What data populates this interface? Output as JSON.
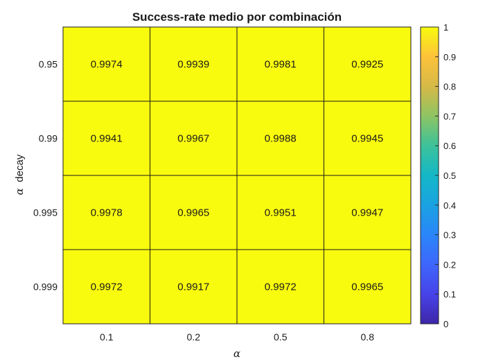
{
  "chart_data": {
    "type": "heatmap",
    "title": "Success-rate medio por combinación",
    "xlabel": "α",
    "ylabel_symbol": "α",
    "ylabel_text": "decay",
    "x_categories": [
      "0.1",
      "0.2",
      "0.5",
      "0.8"
    ],
    "y_categories": [
      "0.95",
      "0.99",
      "0.995",
      "0.999"
    ],
    "values": [
      [
        0.9974,
        0.9939,
        0.9981,
        0.9925
      ],
      [
        0.9941,
        0.9967,
        0.9988,
        0.9945
      ],
      [
        0.9978,
        0.9965,
        0.9951,
        0.9947
      ],
      [
        0.9972,
        0.9917,
        0.9972,
        0.9965
      ]
    ],
    "colorbar": {
      "colormap": "parula",
      "range": [
        0,
        1
      ],
      "ticks": [
        "0",
        "0.1",
        "0.2",
        "0.3",
        "0.4",
        "0.5",
        "0.6",
        "0.7",
        "0.8",
        "0.9",
        "1"
      ]
    },
    "cell_color": "#f9fb0e",
    "grid": true
  }
}
